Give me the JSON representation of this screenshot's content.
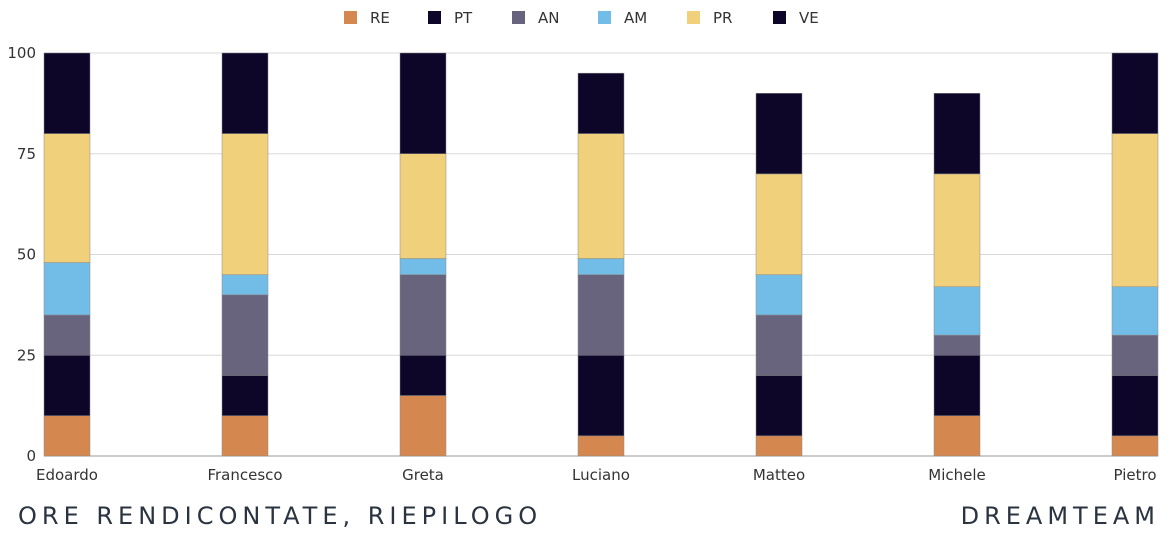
{
  "chart_data": {
    "type": "bar",
    "stacked": true,
    "categories": [
      "Edoardo",
      "Francesco",
      "Greta",
      "Luciano",
      "Matteo",
      "Michele",
      "Pietro"
    ],
    "series": [
      {
        "name": "RE",
        "color": "#d4884f",
        "values": [
          10,
          10,
          15,
          5,
          5,
          10,
          5
        ]
      },
      {
        "name": "PT",
        "color": "#0d0628",
        "values": [
          15,
          10,
          10,
          20,
          15,
          15,
          15
        ]
      },
      {
        "name": "AN",
        "color": "#68647e",
        "values": [
          10,
          20,
          20,
          20,
          15,
          5,
          10
        ]
      },
      {
        "name": "AM",
        "color": "#72bce8",
        "values": [
          13,
          5,
          4,
          4,
          10,
          12,
          12
        ]
      },
      {
        "name": "PR",
        "color": "#f0d07a",
        "values": [
          32,
          35,
          26,
          31,
          25,
          28,
          38
        ]
      },
      {
        "name": "VE",
        "color": "#0d0628",
        "values": [
          20,
          20,
          25,
          15,
          20,
          20,
          20
        ]
      }
    ],
    "yticks": [
      0,
      25,
      50,
      75,
      100
    ],
    "ylim": [
      0,
      100
    ],
    "grid": true,
    "legend_position": "top-center"
  },
  "footer": {
    "left": "ORE RENDICONTATE, RIEPILOGO",
    "right": "DREAMTEAM"
  }
}
